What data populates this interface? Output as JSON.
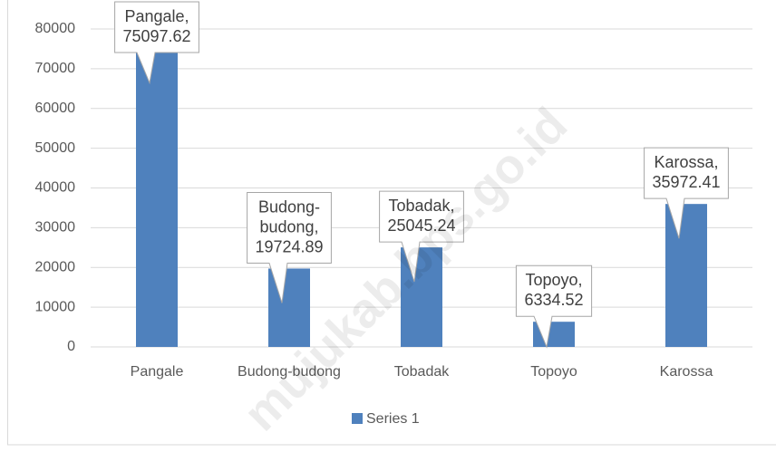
{
  "chart_data": {
    "type": "bar",
    "categories": [
      "Pangale",
      "Budong-budong",
      "Tobadak",
      "Topoyo",
      "Karossa"
    ],
    "series": [
      {
        "name": "Series 1",
        "color": "#4f81bd",
        "values": [
          75097.62,
          19724.89,
          25045.24,
          6334.52,
          35972.41
        ],
        "value_labels": [
          "Pangale, 75097.62",
          "Budong-budong, 19724.89",
          "Tobadak, 25045.24",
          "Topoyo, 6334.52",
          "Karossa, 35972.41"
        ]
      }
    ],
    "ylim": [
      0,
      80000
    ],
    "yticks": [
      0,
      10000,
      20000,
      30000,
      40000,
      50000,
      60000,
      70000,
      80000
    ],
    "grid": true,
    "legend": "bottom",
    "watermark": "mujukab.bps.go.id"
  }
}
